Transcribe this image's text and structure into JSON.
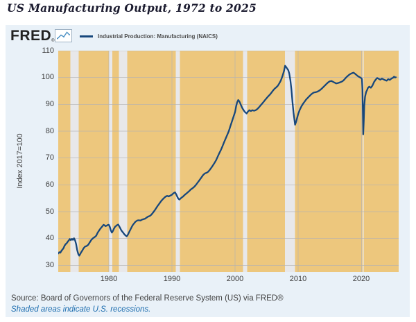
{
  "page_title": "US Manufacturing Output, 1972 to 2025",
  "branding": {
    "logo_text": "FRED",
    "registered_mark": "®"
  },
  "legend": {
    "series_label": "Industrial Production: Manufacturing (NAICS)"
  },
  "footer": {
    "source": "Source: Board of Governors of the Federal Reserve System (US) via FRED®",
    "recession_note": "Shaded areas indicate U.S. recessions."
  },
  "colors": {
    "container_bg": "#e9f1f8",
    "plot_bg": "#edc77d",
    "recession_band": "#e8e8ea",
    "gridline": "#b3b3b3",
    "series_line": "#17477c",
    "link_blue": "#1b6cae",
    "title_text": "#1b1b2f",
    "logo_text": "#222222",
    "logo_icon_line": "#4a90c4",
    "tick_text": "#3c3c3c"
  },
  "chart_data": {
    "type": "line",
    "title": "US Manufacturing Output, 1972 to 2025",
    "xlabel": "",
    "ylabel": "Index 2017=100",
    "x_domain": [
      1972,
      2025.9
    ],
    "y_domain": [
      27.5,
      110
    ],
    "x_ticks": [
      1980,
      1990,
      2000,
      2010,
      2020
    ],
    "y_ticks": [
      30,
      40,
      50,
      60,
      70,
      80,
      90,
      100,
      110
    ],
    "grid": true,
    "legend_position": "top",
    "recessions": [
      [
        1973.92,
        1975.25
      ],
      [
        1980.0,
        1980.58
      ],
      [
        1981.58,
        1982.92
      ],
      [
        1990.58,
        1991.25
      ],
      [
        2001.25,
        2001.92
      ],
      [
        2007.92,
        2009.5
      ],
      [
        2020.17,
        2020.33
      ]
    ],
    "series": [
      {
        "name": "Industrial Production: Manufacturing (NAICS)",
        "color": "#17477c",
        "points": [
          [
            1972,
            34.4
          ],
          [
            1972.17,
            34.9
          ],
          [
            1972.33,
            34.7
          ],
          [
            1972.5,
            35.4
          ],
          [
            1972.67,
            35.9
          ],
          [
            1972.83,
            36.4
          ],
          [
            1973,
            37.3
          ],
          [
            1973.17,
            37.9
          ],
          [
            1973.33,
            38.2
          ],
          [
            1973.5,
            38.8
          ],
          [
            1973.67,
            39.3
          ],
          [
            1973.83,
            39.8
          ],
          [
            1974,
            39.4
          ],
          [
            1974.17,
            39.9
          ],
          [
            1974.33,
            39.5
          ],
          [
            1974.5,
            40.1
          ],
          [
            1974.67,
            39.3
          ],
          [
            1974.83,
            37.9
          ],
          [
            1975,
            35.7
          ],
          [
            1975.17,
            34.2
          ],
          [
            1975.33,
            33.6
          ],
          [
            1975.5,
            34.3
          ],
          [
            1975.67,
            35.0
          ],
          [
            1975.83,
            35.6
          ],
          [
            1976,
            36.3
          ],
          [
            1976.25,
            37.0
          ],
          [
            1976.5,
            37.2
          ],
          [
            1976.75,
            37.7
          ],
          [
            1977,
            38.6
          ],
          [
            1977.25,
            39.5
          ],
          [
            1977.5,
            40.1
          ],
          [
            1977.75,
            40.5
          ],
          [
            1978,
            41.0
          ],
          [
            1978.25,
            42.2
          ],
          [
            1978.5,
            43.1
          ],
          [
            1978.75,
            43.9
          ],
          [
            1979,
            44.6
          ],
          [
            1979.17,
            45.1
          ],
          [
            1979.33,
            44.9
          ],
          [
            1979.5,
            44.6
          ],
          [
            1979.67,
            44.8
          ],
          [
            1979.83,
            45.0
          ],
          [
            1980,
            45.1
          ],
          [
            1980.17,
            44.3
          ],
          [
            1980.33,
            43.0
          ],
          [
            1980.5,
            42.2
          ],
          [
            1980.67,
            42.9
          ],
          [
            1980.83,
            43.7
          ],
          [
            1981,
            44.4
          ],
          [
            1981.17,
            44.7
          ],
          [
            1981.33,
            45.0
          ],
          [
            1981.5,
            45.2
          ],
          [
            1981.67,
            44.5
          ],
          [
            1981.83,
            43.8
          ],
          [
            1982,
            43.0
          ],
          [
            1982.17,
            42.5
          ],
          [
            1982.33,
            42.0
          ],
          [
            1982.5,
            41.5
          ],
          [
            1982.67,
            41.1
          ],
          [
            1982.83,
            40.8
          ],
          [
            1983,
            41.3
          ],
          [
            1983.25,
            42.5
          ],
          [
            1983.5,
            43.7
          ],
          [
            1983.75,
            44.8
          ],
          [
            1984,
            45.6
          ],
          [
            1984.25,
            46.3
          ],
          [
            1984.5,
            46.7
          ],
          [
            1984.75,
            46.8
          ],
          [
            1985,
            46.7
          ],
          [
            1985.25,
            47.0
          ],
          [
            1985.5,
            47.2
          ],
          [
            1985.75,
            47.4
          ],
          [
            1986,
            47.8
          ],
          [
            1986.25,
            48.2
          ],
          [
            1986.5,
            48.4
          ],
          [
            1986.75,
            48.9
          ],
          [
            1987,
            49.6
          ],
          [
            1987.25,
            50.4
          ],
          [
            1987.5,
            51.3
          ],
          [
            1987.75,
            52.2
          ],
          [
            1988,
            53.0
          ],
          [
            1988.25,
            53.8
          ],
          [
            1988.5,
            54.5
          ],
          [
            1988.75,
            55.1
          ],
          [
            1989,
            55.6
          ],
          [
            1989.25,
            55.9
          ],
          [
            1989.5,
            55.7
          ],
          [
            1989.75,
            56.0
          ],
          [
            1990,
            56.3
          ],
          [
            1990.17,
            56.7
          ],
          [
            1990.33,
            57.0
          ],
          [
            1990.5,
            57.2
          ],
          [
            1990.67,
            56.5
          ],
          [
            1990.83,
            55.7
          ],
          [
            1991,
            54.9
          ],
          [
            1991.17,
            54.5
          ],
          [
            1991.33,
            54.8
          ],
          [
            1991.5,
            55.2
          ],
          [
            1991.75,
            55.6
          ],
          [
            1992,
            56.2
          ],
          [
            1992.25,
            56.7
          ],
          [
            1992.5,
            57.2
          ],
          [
            1992.75,
            57.7
          ],
          [
            1993,
            58.3
          ],
          [
            1993.25,
            58.7
          ],
          [
            1993.5,
            59.2
          ],
          [
            1993.75,
            59.8
          ],
          [
            1994,
            60.6
          ],
          [
            1994.25,
            61.4
          ],
          [
            1994.5,
            62.2
          ],
          [
            1994.75,
            63.0
          ],
          [
            1995,
            63.8
          ],
          [
            1995.25,
            64.3
          ],
          [
            1995.5,
            64.5
          ],
          [
            1995.75,
            64.9
          ],
          [
            1996,
            65.6
          ],
          [
            1996.25,
            66.4
          ],
          [
            1996.5,
            67.3
          ],
          [
            1996.75,
            68.2
          ],
          [
            1997,
            69.2
          ],
          [
            1997.25,
            70.5
          ],
          [
            1997.5,
            71.8
          ],
          [
            1997.75,
            73.0
          ],
          [
            1998,
            74.3
          ],
          [
            1998.25,
            75.8
          ],
          [
            1998.5,
            77.2
          ],
          [
            1998.75,
            78.6
          ],
          [
            1999,
            80.0
          ],
          [
            1999.25,
            81.8
          ],
          [
            1999.5,
            83.6
          ],
          [
            1999.75,
            85.4
          ],
          [
            2000,
            87.2
          ],
          [
            2000.17,
            89.3
          ],
          [
            2000.33,
            90.8
          ],
          [
            2000.5,
            91.6
          ],
          [
            2000.67,
            91.1
          ],
          [
            2000.83,
            90.3
          ],
          [
            2001,
            89.3
          ],
          [
            2001.17,
            88.5
          ],
          [
            2001.33,
            87.9
          ],
          [
            2001.5,
            87.3
          ],
          [
            2001.67,
            86.9
          ],
          [
            2001.83,
            86.6
          ],
          [
            2002,
            87.2
          ],
          [
            2002.25,
            87.8
          ],
          [
            2002.5,
            87.5
          ],
          [
            2002.75,
            87.8
          ],
          [
            2003,
            87.6
          ],
          [
            2003.25,
            87.8
          ],
          [
            2003.5,
            88.2
          ],
          [
            2003.75,
            88.8
          ],
          [
            2004,
            89.5
          ],
          [
            2004.25,
            90.2
          ],
          [
            2004.5,
            90.9
          ],
          [
            2004.75,
            91.6
          ],
          [
            2005,
            92.3
          ],
          [
            2005.25,
            93.0
          ],
          [
            2005.5,
            93.6
          ],
          [
            2005.75,
            94.3
          ],
          [
            2006,
            95.1
          ],
          [
            2006.25,
            95.8
          ],
          [
            2006.5,
            96.3
          ],
          [
            2006.75,
            96.9
          ],
          [
            2007,
            97.8
          ],
          [
            2007.25,
            98.9
          ],
          [
            2007.5,
            100.5
          ],
          [
            2007.75,
            102.5
          ],
          [
            2007.92,
            104.4
          ],
          [
            2008.08,
            103.9
          ],
          [
            2008.25,
            103.3
          ],
          [
            2008.42,
            102.7
          ],
          [
            2008.58,
            101.5
          ],
          [
            2008.75,
            99.0
          ],
          [
            2008.92,
            95.6
          ],
          [
            2009.08,
            91.0
          ],
          [
            2009.25,
            87.0
          ],
          [
            2009.42,
            83.8
          ],
          [
            2009.5,
            82.4
          ],
          [
            2009.67,
            83.6
          ],
          [
            2009.83,
            85.0
          ],
          [
            2010,
            86.5
          ],
          [
            2010.25,
            88.0
          ],
          [
            2010.5,
            89.2
          ],
          [
            2010.75,
            90.2
          ],
          [
            2011,
            91.0
          ],
          [
            2011.25,
            91.8
          ],
          [
            2011.5,
            92.4
          ],
          [
            2011.75,
            93.0
          ],
          [
            2012,
            93.6
          ],
          [
            2012.25,
            94.1
          ],
          [
            2012.5,
            94.4
          ],
          [
            2012.75,
            94.5
          ],
          [
            2013,
            94.7
          ],
          [
            2013.25,
            95.0
          ],
          [
            2013.5,
            95.4
          ],
          [
            2013.75,
            95.9
          ],
          [
            2014,
            96.5
          ],
          [
            2014.25,
            97.1
          ],
          [
            2014.5,
            97.7
          ],
          [
            2014.75,
            98.2
          ],
          [
            2015,
            98.6
          ],
          [
            2015.25,
            98.7
          ],
          [
            2015.5,
            98.4
          ],
          [
            2015.75,
            98.1
          ],
          [
            2016,
            97.8
          ],
          [
            2016.25,
            97.9
          ],
          [
            2016.5,
            98.1
          ],
          [
            2016.75,
            98.3
          ],
          [
            2017,
            98.6
          ],
          [
            2017.25,
            99.1
          ],
          [
            2017.5,
            99.8
          ],
          [
            2017.75,
            100.4
          ],
          [
            2018,
            100.9
          ],
          [
            2018.25,
            101.3
          ],
          [
            2018.5,
            101.6
          ],
          [
            2018.75,
            101.8
          ],
          [
            2019,
            101.4
          ],
          [
            2019.25,
            100.9
          ],
          [
            2019.5,
            100.4
          ],
          [
            2019.75,
            100.1
          ],
          [
            2020,
            99.7
          ],
          [
            2020.08,
            99.4
          ],
          [
            2020.17,
            95.5
          ],
          [
            2020.29,
            78.8
          ],
          [
            2020.38,
            84.0
          ],
          [
            2020.46,
            89.5
          ],
          [
            2020.58,
            92.8
          ],
          [
            2020.75,
            94.6
          ],
          [
            2020.92,
            95.4
          ],
          [
            2021,
            96.0
          ],
          [
            2021.25,
            96.6
          ],
          [
            2021.5,
            96.2
          ],
          [
            2021.75,
            97.0
          ],
          [
            2022,
            98.3
          ],
          [
            2022.25,
            99.2
          ],
          [
            2022.5,
            99.8
          ],
          [
            2022.75,
            99.5
          ],
          [
            2023,
            99.2
          ],
          [
            2023.25,
            99.6
          ],
          [
            2023.5,
            99.3
          ],
          [
            2023.75,
            99.0
          ],
          [
            2024,
            98.8
          ],
          [
            2024.25,
            99.4
          ],
          [
            2024.5,
            99.1
          ],
          [
            2024.75,
            99.6
          ],
          [
            2025,
            99.9
          ],
          [
            2025.17,
            100.3
          ],
          [
            2025.33,
            100.0
          ],
          [
            2025.45,
            100.1
          ]
        ]
      }
    ]
  }
}
